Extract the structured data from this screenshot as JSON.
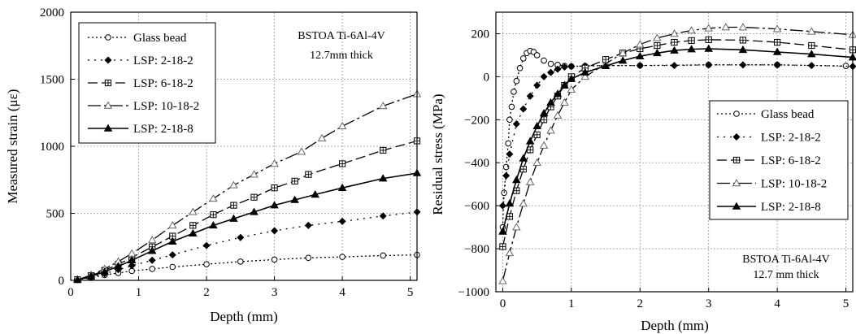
{
  "chart_data": [
    {
      "type": "line",
      "xlabel": "Depth (mm)",
      "ylabel": "Measured strain (με)",
      "xlim": [
        0,
        5.1
      ],
      "ylim": [
        0,
        2000
      ],
      "xticks": [
        0,
        1,
        2,
        3,
        4,
        5
      ],
      "yticks": [
        0,
        500,
        1000,
        1500,
        2000
      ],
      "grid": true,
      "legend_position": "top-left",
      "annotation": [
        "BSTOA Ti-6Al-4V",
        "12.7mm thick"
      ],
      "series": [
        {
          "name": "Glass bead",
          "marker": "circle",
          "dash": "2,3",
          "filled": false,
          "x": [
            0.1,
            0.3,
            0.5,
            0.7,
            0.9,
            1.2,
            1.5,
            2.0,
            2.5,
            3.0,
            3.5,
            4.0,
            4.6,
            5.1
          ],
          "y": [
            5,
            20,
            40,
            55,
            70,
            85,
            100,
            120,
            140,
            155,
            168,
            175,
            185,
            190
          ]
        },
        {
          "name": "LSP: 2-18-2",
          "marker": "diamond",
          "dash": "2,6",
          "filled": true,
          "x": [
            0.1,
            0.3,
            0.5,
            0.7,
            0.9,
            1.2,
            1.5,
            2.0,
            2.5,
            3.0,
            3.5,
            4.0,
            4.6,
            5.1
          ],
          "y": [
            5,
            25,
            50,
            80,
            110,
            150,
            190,
            260,
            320,
            370,
            410,
            440,
            480,
            510
          ]
        },
        {
          "name": "LSP: 6-18-2",
          "marker": "boxplus",
          "dash": "12,5",
          "filled": false,
          "x": [
            0.1,
            0.3,
            0.5,
            0.7,
            0.9,
            1.2,
            1.5,
            1.8,
            2.1,
            2.4,
            2.7,
            3.0,
            3.3,
            3.5,
            4.0,
            4.6,
            5.1
          ],
          "y": [
            5,
            35,
            75,
            120,
            170,
            250,
            330,
            410,
            490,
            560,
            620,
            690,
            740,
            790,
            870,
            970,
            1040
          ]
        },
        {
          "name": "LSP: 10-18-2",
          "marker": "triangle",
          "dash": "16,4,3,4",
          "filled": false,
          "x": [
            0.1,
            0.3,
            0.5,
            0.7,
            0.9,
            1.2,
            1.5,
            1.8,
            2.1,
            2.4,
            2.7,
            3.0,
            3.4,
            3.7,
            4.0,
            4.6,
            5.1
          ],
          "y": [
            5,
            40,
            85,
            140,
            200,
            300,
            410,
            510,
            610,
            710,
            790,
            870,
            960,
            1060,
            1150,
            1300,
            1390
          ]
        },
        {
          "name": "LSP: 2-18-8",
          "marker": "triangle",
          "dash": "",
          "filled": true,
          "x": [
            0.1,
            0.3,
            0.5,
            0.7,
            0.9,
            1.2,
            1.5,
            1.8,
            2.1,
            2.4,
            2.7,
            3.0,
            3.3,
            3.6,
            4.0,
            4.6,
            5.1
          ],
          "y": [
            5,
            30,
            65,
            105,
            150,
            220,
            290,
            350,
            410,
            460,
            510,
            560,
            600,
            640,
            690,
            760,
            800
          ]
        }
      ]
    },
    {
      "type": "line",
      "xlabel": "Depth (mm)",
      "ylabel": "Residual stress (MPa)",
      "xlim": [
        -0.1,
        5.1
      ],
      "ylim": [
        -1000,
        300
      ],
      "xticks": [
        0,
        1,
        2,
        3,
        4,
        5
      ],
      "yticks": [
        -1000,
        -800,
        -600,
        -400,
        -200,
        0,
        200
      ],
      "grid": true,
      "legend_position": "center-right",
      "annotation": [
        "BSTOA Ti-6Al-4V",
        "12.7 mm thick"
      ],
      "series": [
        {
          "name": "Glass bead",
          "marker": "circle",
          "dash": "2,3",
          "filled": false,
          "x": [
            0.0,
            0.02,
            0.05,
            0.08,
            0.1,
            0.13,
            0.16,
            0.2,
            0.25,
            0.3,
            0.35,
            0.4,
            0.45,
            0.5,
            0.6,
            0.7,
            0.8,
            0.9,
            1.0,
            1.2,
            1.5,
            2.0,
            3.0,
            4.0,
            5.0
          ],
          "y": [
            -700,
            -540,
            -420,
            -310,
            -200,
            -140,
            -70,
            -20,
            40,
            85,
            110,
            120,
            115,
            100,
            75,
            60,
            55,
            50,
            48,
            50,
            52,
            52,
            55,
            55,
            50
          ]
        },
        {
          "name": "LSP: 2-18-2",
          "marker": "diamond",
          "dash": "2,6",
          "filled": true,
          "x": [
            0.0,
            0.05,
            0.1,
            0.2,
            0.3,
            0.4,
            0.5,
            0.6,
            0.7,
            0.8,
            0.9,
            1.0,
            1.2,
            1.5,
            2.0,
            2.5,
            3.0,
            3.5,
            4.0,
            4.5,
            5.1
          ],
          "y": [
            -600,
            -460,
            -360,
            -220,
            -150,
            -90,
            -40,
            0,
            20,
            35,
            45,
            48,
            50,
            52,
            52,
            52,
            55,
            55,
            55,
            52,
            48
          ]
        },
        {
          "name": "LSP: 6-18-2",
          "marker": "boxplus",
          "dash": "12,5",
          "filled": false,
          "x": [
            0.0,
            0.1,
            0.2,
            0.3,
            0.4,
            0.5,
            0.6,
            0.7,
            0.8,
            0.9,
            1.0,
            1.2,
            1.5,
            1.75,
            2.0,
            2.25,
            2.5,
            2.75,
            3.0,
            3.5,
            4.0,
            4.5,
            5.1
          ],
          "y": [
            -790,
            -650,
            -530,
            -430,
            -340,
            -270,
            -200,
            -140,
            -90,
            -40,
            0,
            40,
            80,
            110,
            130,
            145,
            160,
            168,
            172,
            170,
            160,
            145,
            125
          ]
        },
        {
          "name": "LSP: 10-18-2",
          "marker": "triangle",
          "dash": "16,4,3,4",
          "filled": false,
          "x": [
            0.0,
            0.1,
            0.2,
            0.3,
            0.4,
            0.5,
            0.6,
            0.7,
            0.8,
            0.9,
            1.0,
            1.2,
            1.5,
            1.75,
            2.0,
            2.25,
            2.5,
            2.75,
            3.0,
            3.25,
            3.5,
            4.0,
            4.5,
            5.1
          ],
          "y": [
            -950,
            -820,
            -700,
            -590,
            -490,
            -400,
            -320,
            -250,
            -180,
            -120,
            -60,
            0,
            60,
            110,
            150,
            180,
            200,
            215,
            225,
            230,
            230,
            222,
            210,
            195
          ]
        },
        {
          "name": "LSP: 2-18-8",
          "marker": "triangle",
          "dash": "",
          "filled": true,
          "x": [
            0.0,
            0.1,
            0.2,
            0.3,
            0.4,
            0.5,
            0.6,
            0.7,
            0.8,
            0.9,
            1.0,
            1.2,
            1.5,
            1.75,
            2.0,
            2.25,
            2.5,
            2.75,
            3.0,
            3.5,
            4.0,
            4.5,
            5.1
          ],
          "y": [
            -720,
            -590,
            -480,
            -380,
            -300,
            -230,
            -170,
            -120,
            -80,
            -40,
            -10,
            20,
            50,
            75,
            95,
            110,
            122,
            128,
            130,
            125,
            115,
            105,
            90
          ]
        }
      ]
    }
  ]
}
